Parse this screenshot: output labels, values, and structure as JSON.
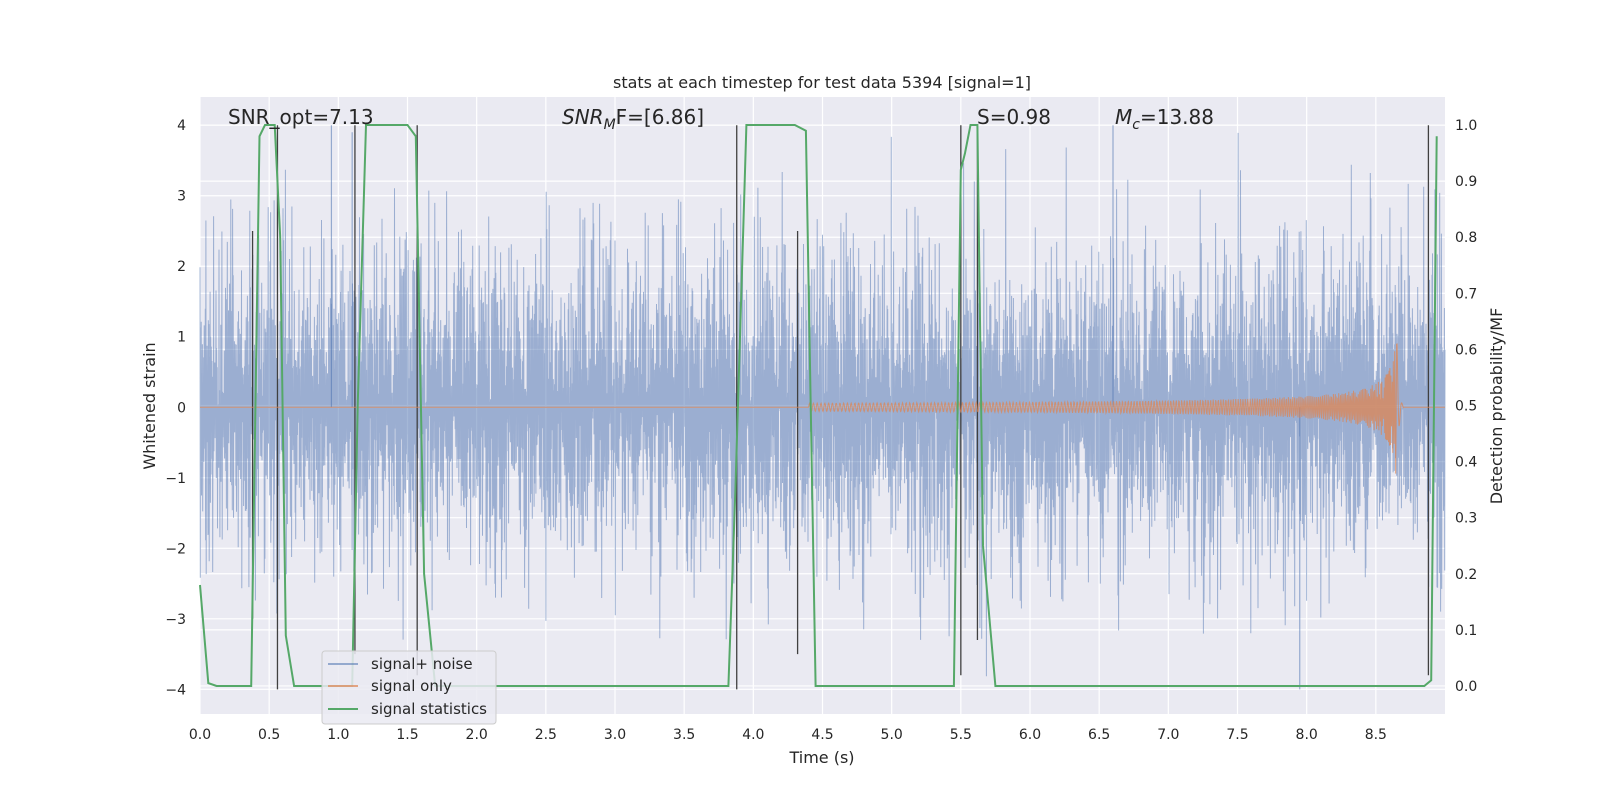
{
  "chart_data": {
    "type": "line",
    "title": "stats at each timestep for test data 5394 [signal=1]",
    "xlabel": "Time (s)",
    "ylabel": "Whitened strain",
    "y2label": "Detection probability/MF",
    "xlim": [
      0,
      9
    ],
    "ylim": [
      -4.35,
      4.4
    ],
    "y2lim": [
      -0.05,
      1.05
    ],
    "x_ticks": [
      0.0,
      0.5,
      1.0,
      1.5,
      2.0,
      2.5,
      3.0,
      3.5,
      4.0,
      4.5,
      5.0,
      5.5,
      6.0,
      6.5,
      7.0,
      7.5,
      8.0,
      8.5
    ],
    "x_tick_labels": [
      "0.0",
      "0.5",
      "1.0",
      "1.5",
      "2.0",
      "2.5",
      "3.0",
      "3.5",
      "4.0",
      "4.5",
      "5.0",
      "5.5",
      "6.0",
      "6.5",
      "7.0",
      "7.5",
      "8.0",
      "8.5"
    ],
    "y_ticks": [
      -4,
      -3,
      -2,
      -1,
      0,
      1,
      2,
      3,
      4
    ],
    "y_tick_labels": [
      "−4",
      "−3",
      "−2",
      "−1",
      "0",
      "1",
      "2",
      "3",
      "4"
    ],
    "y2_ticks": [
      0.0,
      0.1,
      0.2,
      0.3,
      0.4,
      0.5,
      0.6,
      0.7,
      0.8,
      0.9,
      1.0
    ],
    "y2_tick_labels": [
      "0.0",
      "0.1",
      "0.2",
      "0.3",
      "0.4",
      "0.5",
      "0.6",
      "0.7",
      "0.8",
      "0.9",
      "1.0"
    ],
    "grid": true,
    "legend_position": "lower-left",
    "legend": [
      "signal+ noise",
      "signal only",
      "signal statistics"
    ],
    "colors": {
      "noise": "#4c72b0",
      "signal": "#dd8452",
      "stats": "#55a868",
      "markers": "#404040",
      "background": "#eaeaf2",
      "grid": "#ffffff"
    },
    "annotations": {
      "snr_opt": "SNR_opt=7.13",
      "snr_mf_symbol": "SNR",
      "snr_mf_sub": "M",
      "snr_mf_rest": "F=[6.86]",
      "s_value": "S=0.98",
      "mc_symbol": "M",
      "mc_sub": "c",
      "mc_rest": "=13.88"
    },
    "series": [
      {
        "name": "signal+ noise",
        "noise_amplitude": 2.4,
        "notable_peaks": [
          [
            0.95,
            4.0
          ],
          [
            1.1,
            3.9
          ],
          [
            6.6,
            4.0
          ],
          [
            7.95,
            -4.0
          ]
        ]
      },
      {
        "name": "signal only",
        "chirp_start_time": 4.4,
        "chirp_peak_time": 8.65,
        "chirp_peak_amplitude": 1.1,
        "chirp_end_time": 8.7
      },
      {
        "name": "signal statistics",
        "axis": "secondary",
        "x": [
          0.0,
          0.06,
          0.12,
          0.37,
          0.43,
          0.47,
          0.5,
          0.54,
          0.58,
          0.62,
          0.68,
          0.95,
          1.1,
          1.14,
          1.2,
          1.25,
          1.5,
          1.56,
          1.62,
          1.7,
          3.5,
          3.82,
          3.87,
          3.95,
          4.3,
          4.38,
          4.45,
          5.45,
          5.5,
          5.53,
          5.57,
          5.62,
          5.66,
          5.75,
          8.85,
          8.9,
          8.94
        ],
        "y": [
          0.18,
          0.005,
          0.0,
          0.0,
          0.98,
          1.0,
          1.0,
          1.0,
          0.8,
          0.09,
          0.0,
          0.0,
          0.0,
          0.5,
          1.0,
          1.0,
          1.0,
          0.98,
          0.2,
          0.0,
          0.0,
          0.0,
          0.35,
          1.0,
          1.0,
          0.99,
          0.0,
          0.0,
          0.92,
          0.95,
          1.0,
          1.0,
          0.25,
          0.0,
          0.0,
          0.01,
          0.98
        ]
      },
      {
        "name": "decision markers",
        "x": [
          0.38,
          0.56,
          1.12,
          1.57,
          3.88,
          4.32,
          5.5,
          5.62,
          8.88
        ],
        "low_values": [
          -3.0,
          -4.0,
          -3.5,
          -3.8,
          -4.0,
          -3.5,
          -3.8,
          -3.3,
          -3.8
        ],
        "high_values": [
          2.5,
          4.0,
          4.0,
          4.0,
          4.0,
          2.5,
          4.0,
          4.0,
          4.0
        ]
      }
    ]
  }
}
